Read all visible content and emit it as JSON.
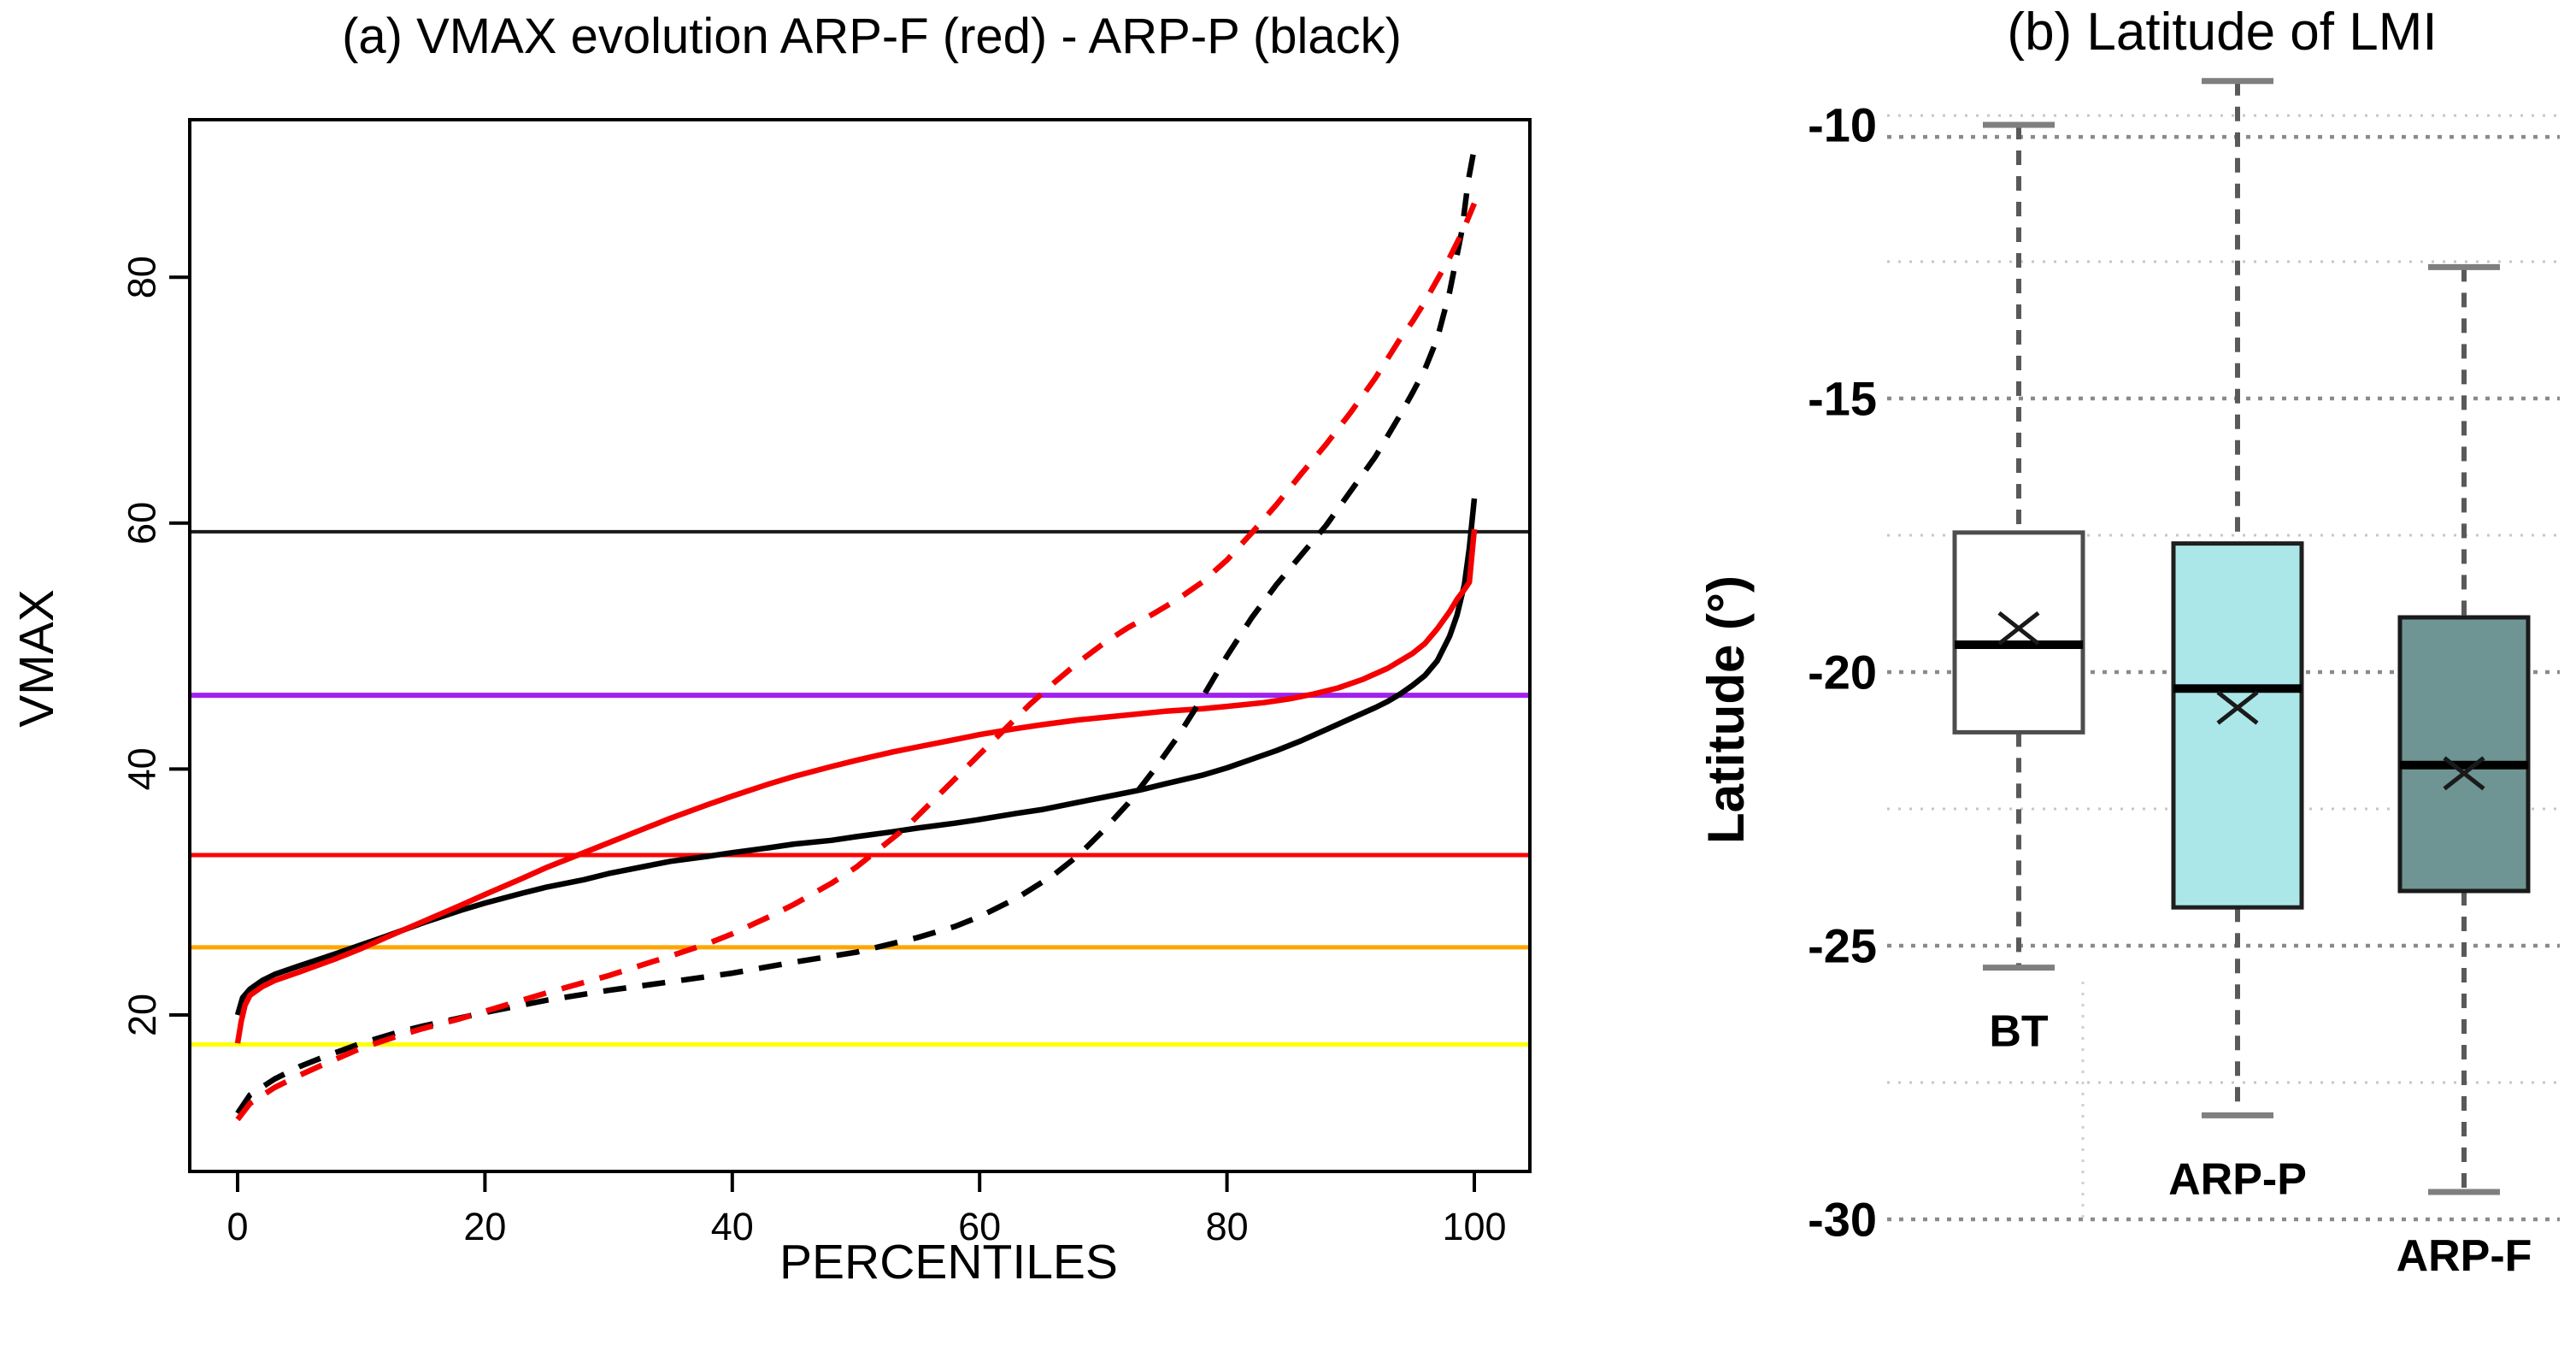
{
  "panel_a": {
    "title": "(a) VMAX evolution ARP-F (red) - ARP-P (black)",
    "x_label": "PERCENTILES",
    "y_label": "VMAX",
    "x_ticks": [
      0,
      20,
      40,
      60,
      80,
      100
    ],
    "y_ticks": [
      20,
      40,
      60,
      80
    ]
  },
  "panel_b": {
    "title": "(b) Latitude of LMI",
    "y_label": "Latitude (°)",
    "y_ticks": [
      -10,
      -15,
      -20,
      -25,
      -30
    ]
  },
  "chart_data": [
    {
      "type": "line",
      "title": "(a) VMAX evolution ARP-F (red) - ARP-P (black)",
      "xlabel": "PERCENTILES",
      "ylabel": "VMAX",
      "xlim": [
        -4,
        104.5
      ],
      "ylim": [
        7.3,
        92.8
      ],
      "grid": false,
      "legend_position": "none",
      "reference_lines": [
        {
          "name": "threshold-yellow",
          "value": 17.6,
          "color": "#FFFF00",
          "width": 5
        },
        {
          "name": "threshold-orange",
          "value": 25.5,
          "color": "#FFA500",
          "width": 5
        },
        {
          "name": "threshold-red",
          "value": 33.0,
          "color": "#FF0000",
          "width": 5
        },
        {
          "name": "threshold-purple",
          "value": 46.0,
          "color": "#A020F0",
          "width": 6
        },
        {
          "name": "threshold-black",
          "value": 59.3,
          "color": "#1A1A1A",
          "width": 4
        }
      ],
      "series": [
        {
          "name": "ARP-P (black, solid)",
          "color": "#000000",
          "style": "solid",
          "points": [
            [
              0,
              20
            ],
            [
              0.4,
              21.4
            ],
            [
              1,
              22.1
            ],
            [
              2,
              22.8
            ],
            [
              3,
              23.3
            ],
            [
              5,
              24
            ],
            [
              8,
              25
            ],
            [
              10,
              25.7
            ],
            [
              12,
              26.4
            ],
            [
              15,
              27.5
            ],
            [
              18,
              28.5
            ],
            [
              20,
              29.1
            ],
            [
              23,
              29.9
            ],
            [
              25,
              30.4
            ],
            [
              28,
              31
            ],
            [
              30,
              31.5
            ],
            [
              33,
              32.1
            ],
            [
              35,
              32.5
            ],
            [
              38,
              32.9
            ],
            [
              40,
              33.2
            ],
            [
              43,
              33.6
            ],
            [
              45,
              33.9
            ],
            [
              48,
              34.2
            ],
            [
              50,
              34.5
            ],
            [
              53,
              34.9
            ],
            [
              55,
              35.2
            ],
            [
              58,
              35.6
            ],
            [
              60,
              35.9
            ],
            [
              63,
              36.4
            ],
            [
              65,
              36.7
            ],
            [
              68,
              37.3
            ],
            [
              70,
              37.7
            ],
            [
              73,
              38.3
            ],
            [
              75,
              38.8
            ],
            [
              78,
              39.5
            ],
            [
              80,
              40.1
            ],
            [
              82,
              40.8
            ],
            [
              84,
              41.5
            ],
            [
              86,
              42.3
            ],
            [
              88,
              43.2
            ],
            [
              90,
              44.1
            ],
            [
              92,
              45
            ],
            [
              93,
              45.5
            ],
            [
              94,
              46.1
            ],
            [
              95,
              46.8
            ],
            [
              96,
              47.6
            ],
            [
              97,
              48.8
            ],
            [
              98,
              50.8
            ],
            [
              98.6,
              52.5
            ],
            [
              99.2,
              55
            ],
            [
              99.6,
              58
            ],
            [
              100,
              62
            ]
          ]
        },
        {
          "name": "ARP-F (red, solid)",
          "color": "#F40000",
          "style": "solid",
          "points": [
            [
              0,
              17.7
            ],
            [
              0.3,
              19.5
            ],
            [
              0.6,
              20.8
            ],
            [
              1,
              21.6
            ],
            [
              2,
              22.3
            ],
            [
              3,
              22.8
            ],
            [
              5,
              23.5
            ],
            [
              8,
              24.6
            ],
            [
              10,
              25.4
            ],
            [
              12,
              26.3
            ],
            [
              15,
              27.6
            ],
            [
              18,
              28.9
            ],
            [
              20,
              29.8
            ],
            [
              23,
              31.1
            ],
            [
              25,
              32
            ],
            [
              28,
              33.2
            ],
            [
              30,
              34
            ],
            [
              33,
              35.2
            ],
            [
              35,
              36
            ],
            [
              38,
              37.1
            ],
            [
              40,
              37.8
            ],
            [
              43,
              38.8
            ],
            [
              45,
              39.4
            ],
            [
              48,
              40.2
            ],
            [
              50,
              40.7
            ],
            [
              53,
              41.4
            ],
            [
              55,
              41.8
            ],
            [
              58,
              42.4
            ],
            [
              60,
              42.8
            ],
            [
              63,
              43.3
            ],
            [
              65,
              43.6
            ],
            [
              68,
              44
            ],
            [
              70,
              44.2
            ],
            [
              73,
              44.5
            ],
            [
              75,
              44.7
            ],
            [
              78,
              44.9
            ],
            [
              80,
              45.1
            ],
            [
              83,
              45.4
            ],
            [
              85,
              45.7
            ],
            [
              87,
              46.1
            ],
            [
              89,
              46.6
            ],
            [
              91,
              47.3
            ],
            [
              93,
              48.2
            ],
            [
              95,
              49.4
            ],
            [
              96,
              50.2
            ],
            [
              97,
              51.4
            ],
            [
              98,
              52.8
            ],
            [
              98.6,
              53.8
            ],
            [
              99.2,
              54.6
            ],
            [
              99.6,
              55.2
            ],
            [
              100,
              59.5
            ]
          ]
        },
        {
          "name": "ARP-P (black, dashed)",
          "color": "#000000",
          "style": "dashed",
          "points": [
            [
              0,
              12
            ],
            [
              1,
              13.5
            ],
            [
              3,
              14.8
            ],
            [
              5,
              15.8
            ],
            [
              7,
              16.6
            ],
            [
              10,
              17.7
            ],
            [
              13,
              18.6
            ],
            [
              15,
              19.1
            ],
            [
              20,
              20.2
            ],
            [
              25,
              21.2
            ],
            [
              30,
              22
            ],
            [
              35,
              22.7
            ],
            [
              40,
              23.4
            ],
            [
              45,
              24.3
            ],
            [
              50,
              25.1
            ],
            [
              55,
              26.3
            ],
            [
              58,
              27.2
            ],
            [
              60,
              28
            ],
            [
              63,
              29.5
            ],
            [
              66,
              31.4
            ],
            [
              68,
              33
            ],
            [
              70,
              35
            ],
            [
              72,
              37.2
            ],
            [
              74,
              39.8
            ],
            [
              76,
              42.6
            ],
            [
              78,
              45.8
            ],
            [
              80,
              49.2
            ],
            [
              82,
              52.3
            ],
            [
              84,
              55
            ],
            [
              86,
              57.4
            ],
            [
              88,
              59.8
            ],
            [
              90,
              62.6
            ],
            [
              92,
              65.4
            ],
            [
              94,
              68.8
            ],
            [
              95,
              70.6
            ],
            [
              96,
              72.5
            ],
            [
              97,
              75
            ],
            [
              98,
              78.8
            ],
            [
              99,
              83.8
            ],
            [
              99.5,
              87.8
            ],
            [
              100,
              90.5
            ]
          ]
        },
        {
          "name": "ARP-F (red, dashed)",
          "color": "#F40000",
          "style": "dashed",
          "points": [
            [
              0,
              11.5
            ],
            [
              1,
              12.8
            ],
            [
              3,
              14.1
            ],
            [
              5,
              15.1
            ],
            [
              7,
              16
            ],
            [
              10,
              17.3
            ],
            [
              13,
              18.3
            ],
            [
              15,
              18.9
            ],
            [
              18,
              19.7
            ],
            [
              20,
              20.3
            ],
            [
              25,
              21.8
            ],
            [
              30,
              23.2
            ],
            [
              35,
              24.8
            ],
            [
              38,
              25.8
            ],
            [
              40,
              26.6
            ],
            [
              43,
              28
            ],
            [
              45,
              29
            ],
            [
              48,
              30.7
            ],
            [
              50,
              32
            ],
            [
              52,
              33.6
            ],
            [
              54,
              35.2
            ],
            [
              56,
              37.2
            ],
            [
              58,
              39.2
            ],
            [
              60,
              41.2
            ],
            [
              62,
              43.2
            ],
            [
              64,
              45.2
            ],
            [
              66,
              47
            ],
            [
              68,
              48.7
            ],
            [
              70,
              50.2
            ],
            [
              72,
              51.5
            ],
            [
              74,
              52.6
            ],
            [
              76,
              53.8
            ],
            [
              78,
              55.2
            ],
            [
              80,
              57
            ],
            [
              82,
              59.2
            ],
            [
              84,
              61.5
            ],
            [
              86,
              64
            ],
            [
              88,
              66.4
            ],
            [
              90,
              69
            ],
            [
              92,
              71.8
            ],
            [
              94,
              75
            ],
            [
              95,
              76.4
            ],
            [
              96,
              78
            ],
            [
              97,
              79.8
            ],
            [
              98,
              81.6
            ],
            [
              99,
              83.6
            ],
            [
              99.5,
              84.8
            ],
            [
              100,
              86
            ]
          ]
        }
      ]
    },
    {
      "type": "boxplot",
      "title": "(b) Latitude of LMI",
      "ylabel": "Latitude (°)",
      "ylim": [
        -31,
        -9
      ],
      "y_ticks": [
        -10,
        -15,
        -20,
        -25,
        -30
      ],
      "grid": true,
      "major_gridlines": [
        -10.22,
        -15,
        -20,
        -25,
        -30
      ],
      "minor_gridlines": [
        -9.83,
        -12.5,
        -17.5,
        -22.5,
        -27.5
      ],
      "groups": [
        {
          "label": "BT",
          "fill": "#FFFFFF",
          "border": "#4D4D4D",
          "whisker_high": -10.0,
          "q3": -17.45,
          "median": -19.5,
          "mean": -19.2,
          "q1": -21.1,
          "whisker_low": -25.4
        },
        {
          "label": "ARP-P",
          "fill": "#ABE7E9",
          "border": "#1F1F1F",
          "whisker_high": -9.2,
          "q3": -17.65,
          "median": -20.3,
          "mean": -20.65,
          "q1": -24.3,
          "whisker_low": -28.1
        },
        {
          "label": "ARP-F",
          "fill": "#6E9493",
          "border": "#1A1A1A",
          "whisker_high": -12.6,
          "q3": -19.0,
          "median": -21.7,
          "mean": -21.85,
          "q1": -24.0,
          "whisker_low": -29.5
        }
      ],
      "style_colors": {
        "whisker": "#595959",
        "cap": "#7F7F7F",
        "median": "#000000",
        "mean_marker": "#1A1A1A",
        "major_grid": "#8A8A8A",
        "minor_grid": "#C6C6C6"
      }
    }
  ]
}
